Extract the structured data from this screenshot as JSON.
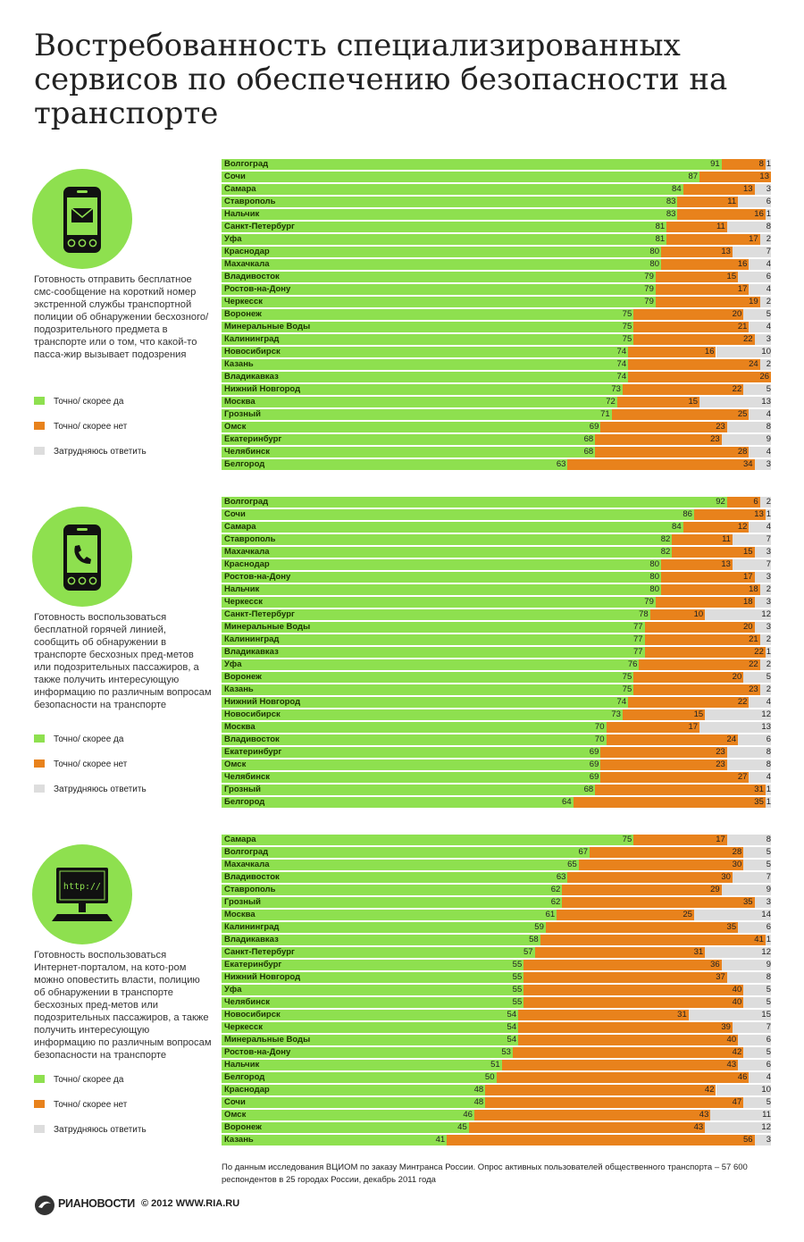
{
  "title": "Востребованность специализированных сервисов по обеспечению безопасности на транспорте",
  "colors": {
    "yes": "#8ee04f",
    "no": "#e8821c",
    "unsure": "#dddddd"
  },
  "legend": {
    "yes": "Точно/ скорее да",
    "no": "Точно/ скорее нет",
    "unsure": "Затрудняюсь ответить"
  },
  "source": "По данным исследования ВЦИОМ по заказу Минтранса России. Опрос активных пользователей общественного транспорта – 57 600 респондентов в 25 городах России, декабрь 2011 года",
  "footer": {
    "brand": "РИАНОВОСТИ",
    "copyright": "© 2012 WWW.RIA.RU"
  },
  "chart_data": [
    {
      "type": "bar",
      "icon": "sms-phone-icon",
      "description": "Готовность отправить бесплатное смс-сообщение на короткий номер экстренной службы транспортной полиции об обнаружении бесхозного/ подозрительного предмета в транспорте или о том, что какой-то пасса-жир вызывает подозрения",
      "categories": [
        "Волгоград",
        "Сочи",
        "Самара",
        "Ставрополь",
        "Нальчик",
        "Санкт-Петербург",
        "Уфа",
        "Краснодар",
        "Махачкала",
        "Владивосток",
        "Ростов-на-Дону",
        "Черкесск",
        "Воронеж",
        "Минеральные Воды",
        "Калининград",
        "Новосибирск",
        "Казань",
        "Владикавказ",
        "Нижний Новгород",
        "Москва",
        "Грозный",
        "Омск",
        "Екатеринбург",
        "Челябинск",
        "Белгород"
      ],
      "series": [
        {
          "name": "Точно/ скорее да",
          "values": [
            91,
            87,
            84,
            83,
            83,
            81,
            81,
            80,
            80,
            79,
            79,
            79,
            75,
            75,
            75,
            74,
            74,
            74,
            73,
            72,
            71,
            69,
            68,
            68,
            63
          ]
        },
        {
          "name": "Точно/ скорее нет",
          "values": [
            8,
            13,
            13,
            11,
            16,
            11,
            17,
            13,
            16,
            15,
            17,
            19,
            20,
            21,
            22,
            16,
            24,
            26,
            22,
            15,
            25,
            23,
            23,
            28,
            34
          ]
        },
        {
          "name": "Затрудняюсь ответить",
          "values": [
            1,
            0,
            3,
            6,
            1,
            8,
            2,
            7,
            4,
            6,
            4,
            2,
            5,
            4,
            3,
            10,
            2,
            0,
            5,
            13,
            4,
            8,
            9,
            4,
            3
          ]
        }
      ]
    },
    {
      "type": "bar",
      "icon": "call-phone-icon",
      "description": "Готовность воспользоваться бесплатной горячей линией, сообщить об обнаружении в транспорте бесхозных пред-метов или подозрительных пассажиров, а также получить интересующую информацию по различным вопросам безопасности на транспорте",
      "categories": [
        "Волгоград",
        "Сочи",
        "Самара",
        "Ставрополь",
        "Махачкала",
        "Краснодар",
        "Ростов-на-Дону",
        "Нальчик",
        "Черкесск",
        "Санкт-Петербург",
        "Минеральные Воды",
        "Калининград",
        "Владикавказ",
        "Уфа",
        "Воронеж",
        "Казань",
        "Нижний Новгород",
        "Новосибирск",
        "Москва",
        "Владивосток",
        "Екатеринбург",
        "Омск",
        "Челябинск",
        "Грозный",
        "Белгород"
      ],
      "series": [
        {
          "name": "Точно/ скорее да",
          "values": [
            92,
            86,
            84,
            82,
            82,
            80,
            80,
            80,
            79,
            78,
            77,
            77,
            77,
            76,
            75,
            75,
            74,
            73,
            70,
            70,
            69,
            69,
            69,
            68,
            64
          ]
        },
        {
          "name": "Точно/ скорее нет",
          "values": [
            6,
            13,
            12,
            11,
            15,
            13,
            17,
            18,
            18,
            10,
            20,
            21,
            22,
            22,
            20,
            23,
            22,
            15,
            17,
            24,
            23,
            23,
            27,
            31,
            35
          ]
        },
        {
          "name": "Затрудняюсь ответить",
          "values": [
            2,
            1,
            4,
            7,
            3,
            7,
            3,
            2,
            3,
            12,
            3,
            2,
            1,
            2,
            5,
            2,
            4,
            12,
            13,
            6,
            8,
            8,
            4,
            1,
            1
          ]
        }
      ]
    },
    {
      "type": "bar",
      "icon": "internet-monitor-icon",
      "icon_text": "http://",
      "description": "Готовность воспользоваться Интернет-порталом, на кото-ром можно оповестить власти, полицию об обнаружении в транспорте бесхозных пред-метов или подозрительных пассажиров, а также получить интересующую информацию по различным вопросам безопасности на транспорте",
      "categories": [
        "Самара",
        "Волгоград",
        "Махачкала",
        "Владивосток",
        "Ставрополь",
        "Грозный",
        "Москва",
        "Калининград",
        "Владикавказ",
        "Санкт-Петербург",
        "Екатеринбург",
        "Нижний Новгород",
        "Уфа",
        "Челябинск",
        "Новосибирск",
        "Черкесск",
        "Минеральные Воды",
        "Ростов-на-Дону",
        "Нальчик",
        "Белгород",
        "Краснодар",
        "Сочи",
        "Омск",
        "Воронеж",
        "Казань"
      ],
      "series": [
        {
          "name": "Точно/ скорее да",
          "values": [
            75,
            67,
            65,
            63,
            62,
            62,
            61,
            59,
            58,
            57,
            55,
            55,
            55,
            55,
            54,
            54,
            54,
            53,
            51,
            50,
            48,
            48,
            46,
            45,
            41
          ]
        },
        {
          "name": "Точно/ скорее нет",
          "values": [
            17,
            28,
            30,
            30,
            29,
            35,
            25,
            35,
            41,
            31,
            36,
            37,
            40,
            40,
            31,
            39,
            40,
            42,
            43,
            46,
            42,
            47,
            43,
            43,
            56
          ]
        },
        {
          "name": "Затрудняюсь ответить",
          "values": [
            8,
            5,
            5,
            7,
            9,
            3,
            14,
            6,
            1,
            12,
            9,
            8,
            5,
            5,
            15,
            7,
            6,
            5,
            6,
            4,
            10,
            5,
            11,
            12,
            3
          ]
        }
      ]
    }
  ]
}
